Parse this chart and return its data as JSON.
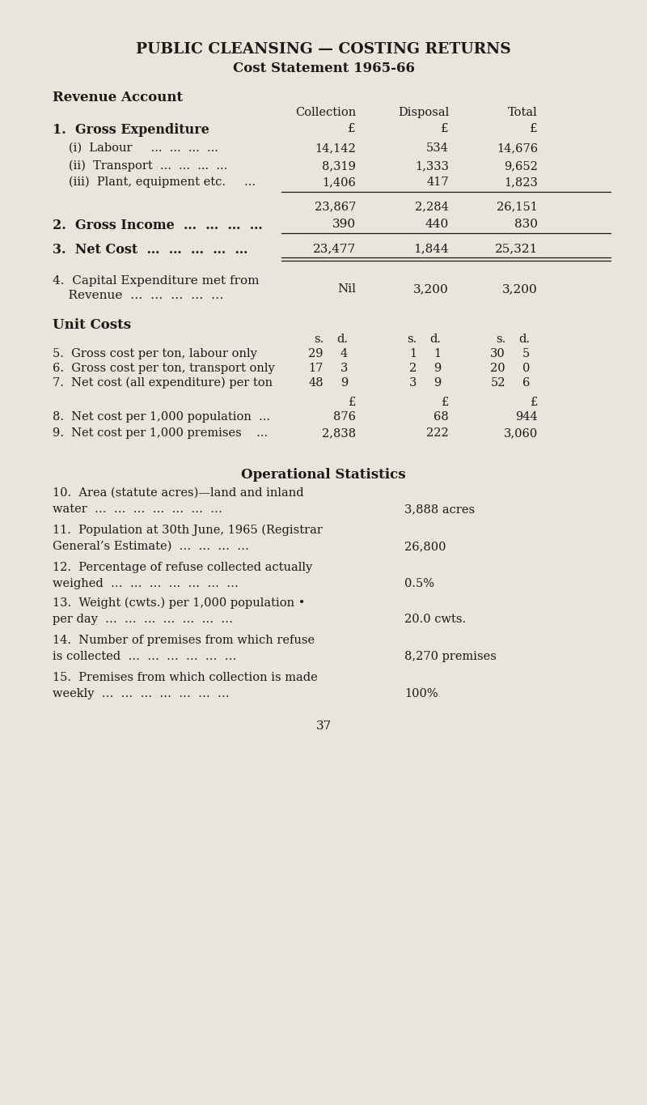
{
  "bg_color": "#e8e5dc",
  "title1": "PUBLIC CLEANSING — COSTING RETURNS",
  "title2": "Cost Statement 1965-66",
  "section1_header": "Revenue Account",
  "col_headers": [
    "Collection",
    "Disposal",
    "Total"
  ],
  "item1_label": "1.  Gross Expenditure",
  "sub_items": [
    [
      "(i)  Labour     …  …  …  …",
      "14,142",
      "534",
      "14,676"
    ],
    [
      "(ii)  Transport  …  …  …  …",
      "8,319",
      "1,333",
      "9,652"
    ],
    [
      "(iii)  Plant, equipment etc.     …",
      "1,406",
      "417",
      "1,823"
    ]
  ],
  "subtotal": [
    "23,867",
    "2,284",
    "26,151"
  ],
  "item2_label": "2.  Gross Income  …  …  …  …",
  "item2_vals": [
    "390",
    "440",
    "830"
  ],
  "item3_label": "3.  Net Cost  …  …  …  …  …",
  "item3_vals": [
    "23,477",
    "1,844",
    "25,321"
  ],
  "item4_line1": "4.  Capital Expenditure met from",
  "item4_line2": "    Revenue  …  …  …  …  …",
  "item4_vals": [
    "Nil",
    "3,200",
    "3,200"
  ],
  "section2_header": "Unit Costs",
  "sd_header": [
    "s.  d.",
    "s.  d.",
    "s.  d."
  ],
  "unit_items": [
    [
      "5.  Gross cost per ton, labour only",
      "29",
      "4",
      "1",
      "1",
      "30",
      "5"
    ],
    [
      "6.  Gross cost per ton, transport only",
      "17",
      "3",
      "2",
      "9",
      "20",
      "0"
    ],
    [
      "7.  Net cost (all expenditure) per ton",
      "48",
      "9",
      "3",
      "9",
      "52",
      "6"
    ]
  ],
  "pound_items": [
    [
      "8.  Net cost per 1,000 population  …",
      "876",
      "68",
      "944"
    ],
    [
      "9.  Net cost per 1,000 premises    …",
      "2,838",
      "222",
      "3,060"
    ]
  ],
  "section3_header": "Operational Statistics",
  "op_items": [
    [
      "10.  Area (statute acres)—land and inland",
      "water  …  …  …  …  …  …  …",
      "3,888 acres"
    ],
    [
      "11.  Population at 30th June, 1965 (Registrar",
      "General’s Estimate)  …  …  …  …",
      "26,800"
    ],
    [
      "12.  Percentage of refuse collected actually",
      "weighed  …  …  …  …  …  …  …",
      "0.5%"
    ],
    [
      "13.  Weight (cwts.) per 1,000 population •",
      "per day  …  …  …  …  …  …  …",
      "20.0 cwts."
    ],
    [
      "14.  Number of premises from which refuse",
      "is collected  …  …  …  …  …  …",
      "8,270 premises"
    ],
    [
      "15.  Premises from which collection is made",
      "weekly  …  …  …  …  …  …  …",
      "100%"
    ]
  ],
  "page_number": "37"
}
